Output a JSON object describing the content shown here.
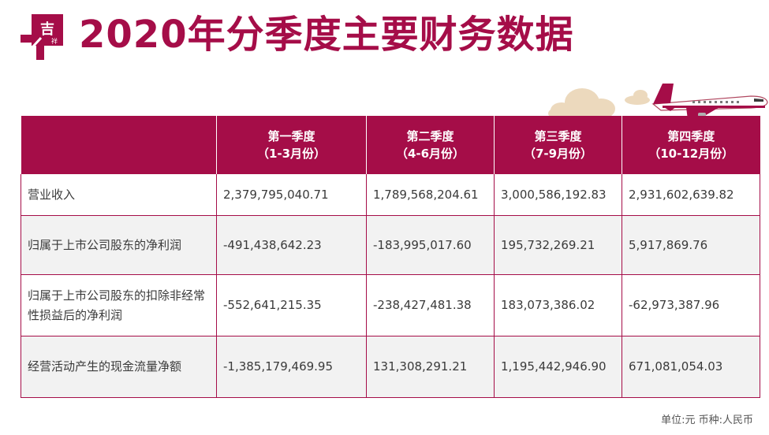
{
  "logo": {
    "text_top": "吉",
    "text_bottom": "祥"
  },
  "title": "2020年分季度主要财务数据",
  "table": {
    "headers": [
      {
        "line1": "",
        "line2": ""
      },
      {
        "line1": "第一季度",
        "line2": "（1-3月份）"
      },
      {
        "line1": "第二季度",
        "line2": "（4-6月份）"
      },
      {
        "line1": "第三季度",
        "line2": "（7-9月份）"
      },
      {
        "line1": "第四季度",
        "line2": "（10-12月份）"
      }
    ],
    "rows": [
      {
        "label": "营业收入",
        "q1": "2,379,795,040.71",
        "q2": "1,789,568,204.61",
        "q3": "3,000,586,192.83",
        "q4": "2,931,602,639.82"
      },
      {
        "label": "归属于上市公司股东的净利润",
        "q1": "-491,438,642.23",
        "q2": "-183,995,017.60",
        "q3": "195,732,269.21",
        "q4": "5,917,869.76"
      },
      {
        "label": "归属于上市公司股东的扣除非经常性损益后的净利润",
        "q1": "-552,641,215.35",
        "q2": "-238,427,481.38",
        "q3": "183,073,386.02",
        "q4": "-62,973,387.96"
      },
      {
        "label": "经营活动产生的现金流量净额",
        "q1": "-1,385,179,469.95",
        "q2": "131,308,291.21",
        "q3": "1,195,442,946.90",
        "q4": "671,081,054.03"
      }
    ]
  },
  "unit_note": "单位:元  币种:人民币",
  "colors": {
    "brand": "#a50d48",
    "row_alt": "#f2f2f2",
    "cloud": "#e8d3b4"
  }
}
